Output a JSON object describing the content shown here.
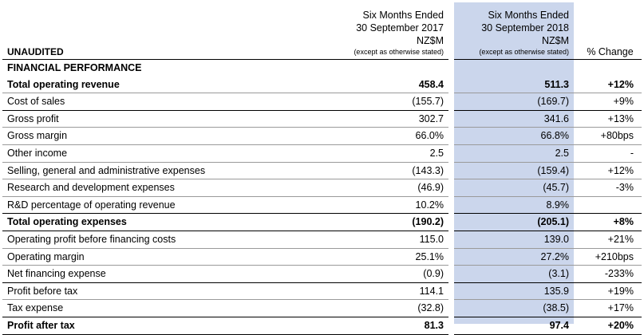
{
  "header": {
    "label": "UNAUDITED",
    "period1": [
      "Six Months Ended",
      "30 September 2017",
      "NZ$M",
      "(except as otherwise stated)"
    ],
    "period2": [
      "Six Months Ended",
      "30 September 2018",
      "NZ$M",
      "(except as otherwise stated)"
    ],
    "change": "% Change"
  },
  "section": "FINANCIAL PERFORMANCE",
  "rows": [
    {
      "label": "Total operating revenue",
      "p1": "458.4",
      "p2": "511.3",
      "chg": "+12%"
    },
    {
      "label": "Cost of sales",
      "p1": "(155.7)",
      "p2": "(169.7)",
      "chg": "+9%"
    },
    {
      "label": "Gross profit",
      "p1": "302.7",
      "p2": "341.6",
      "chg": "+13%"
    },
    {
      "label": "Gross margin",
      "p1": "66.0%",
      "p2": "66.8%",
      "chg": "+80bps"
    },
    {
      "label": "Other income",
      "p1": "2.5",
      "p2": "2.5",
      "chg": "-"
    },
    {
      "label": "Selling, general and administrative expenses",
      "p1": "(143.3)",
      "p2": "(159.4)",
      "chg": "+12%"
    },
    {
      "label": "Research and development expenses",
      "p1": "(46.9)",
      "p2": "(45.7)",
      "chg": "-3%"
    },
    {
      "label": "R&D percentage of operating revenue",
      "p1": "10.2%",
      "p2": "8.9%",
      "chg": ""
    },
    {
      "label": "Total operating expenses",
      "p1": "(190.2)",
      "p2": "(205.1)",
      "chg": "+8%"
    },
    {
      "label": "Operating profit before financing costs",
      "p1": "115.0",
      "p2": "139.0",
      "chg": "+21%"
    },
    {
      "label": "Operating margin",
      "p1": "25.1%",
      "p2": "27.2%",
      "chg": "+210bps"
    },
    {
      "label": "Net financing expense",
      "p1": "(0.9)",
      "p2": "(3.1)",
      "chg": "-233%"
    },
    {
      "label": "Profit before tax",
      "p1": "114.1",
      "p2": "135.9",
      "chg": "+19%"
    },
    {
      "label": "Tax expense",
      "p1": "(32.8)",
      "p2": "(38.5)",
      "chg": "+17%"
    },
    {
      "label": "Profit after tax",
      "p1": "81.3",
      "p2": "97.4",
      "chg": "+20%"
    }
  ]
}
